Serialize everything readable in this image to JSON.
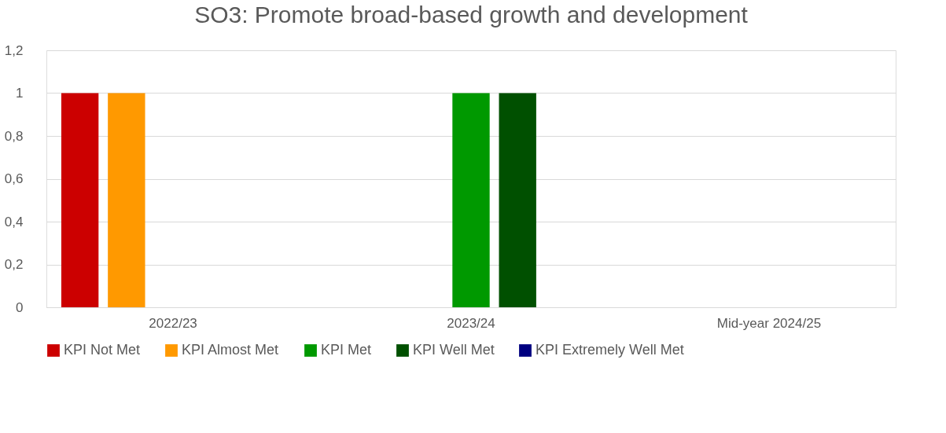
{
  "chart_data": {
    "type": "bar",
    "title": "SO3: Promote broad-based growth and development",
    "categories": [
      "2022/23",
      "2023/24",
      "Mid-year 2024/25"
    ],
    "series": [
      {
        "name": "KPI Not Met",
        "color": "#cc0000",
        "values": [
          1,
          0,
          0
        ]
      },
      {
        "name": "KPI Almost Met",
        "color": "#ff9900",
        "values": [
          1,
          0,
          0
        ]
      },
      {
        "name": "KPI Met",
        "color": "#009900",
        "values": [
          0,
          1,
          0
        ]
      },
      {
        "name": "KPI Well Met",
        "color": "#005000",
        "values": [
          0,
          1,
          0
        ]
      },
      {
        "name": "KPI Extremely Well Met",
        "color": "#000080",
        "values": [
          0,
          0,
          0
        ]
      }
    ],
    "ylim": [
      0,
      1.2
    ],
    "yticks": [
      0,
      {
        "value": 0.2,
        "label": "0,2"
      },
      {
        "value": 0.4,
        "label": "0,4"
      },
      {
        "value": 0.6,
        "label": "0,6"
      },
      {
        "value": 0.8,
        "label": "0,8"
      },
      1,
      {
        "value": 1.2,
        "label": "1,2"
      }
    ],
    "grid": "y",
    "legend": "bottom"
  }
}
